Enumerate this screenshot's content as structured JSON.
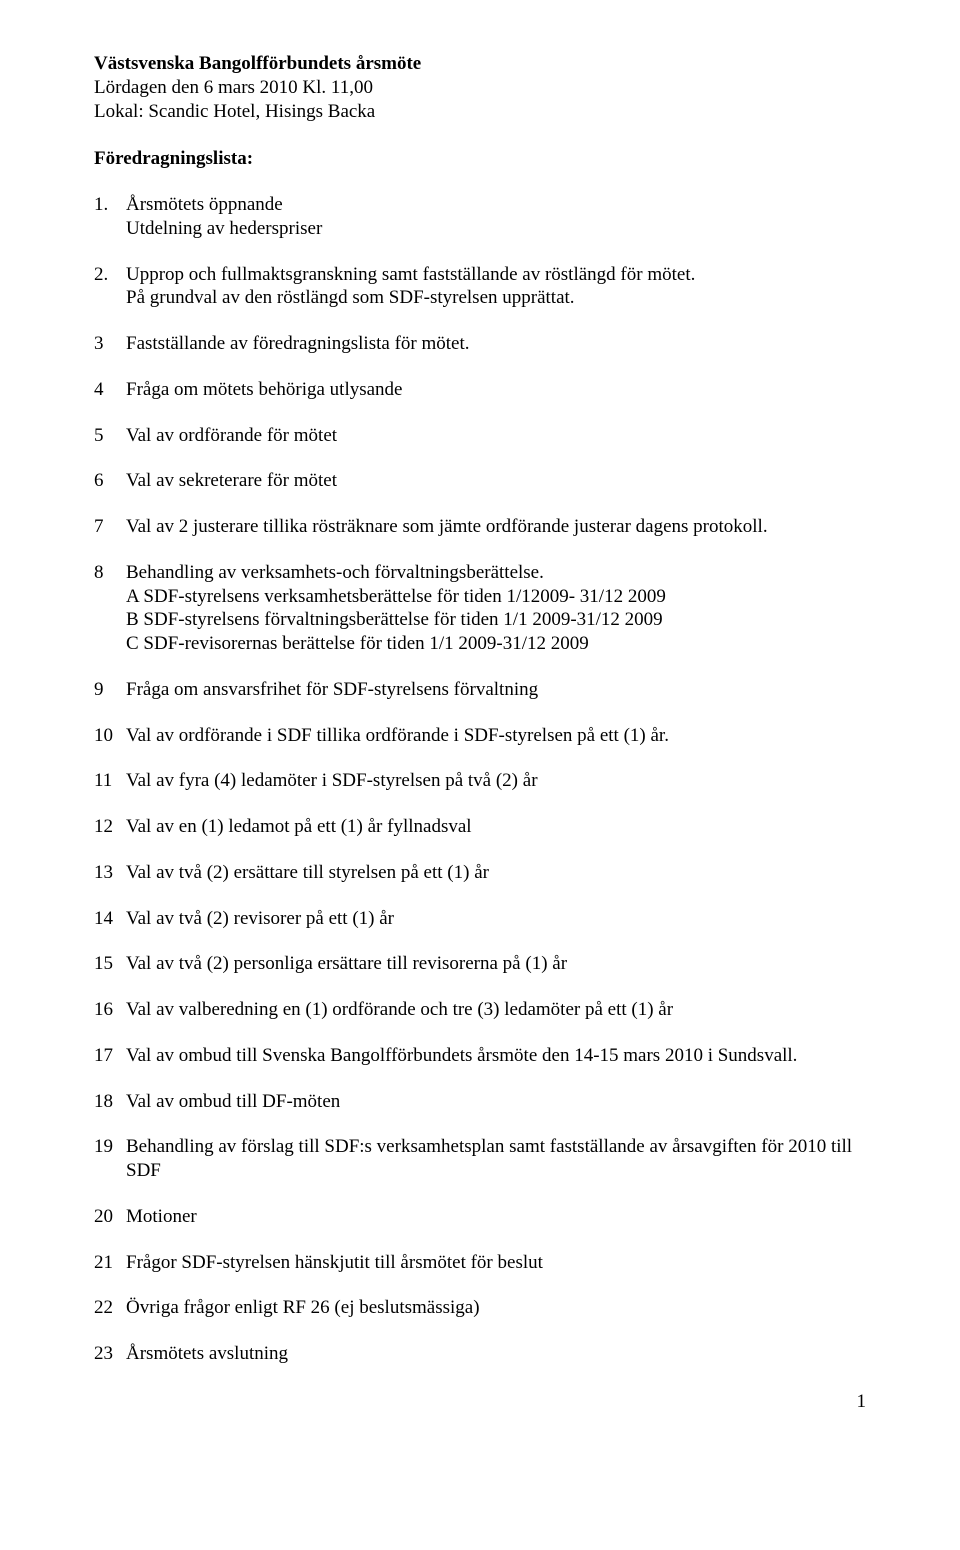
{
  "header": {
    "title": "Västsvenska Bangolfförbundets årsmöte",
    "line2": "Lördagen den 6 mars 2010 Kl. 11,00",
    "line3": "Lokal: Scandic Hotel, Hisings Backa"
  },
  "section_heading": "Föredragningslista:",
  "items": [
    {
      "num": "1.",
      "text": "Årsmötets öppnande",
      "sub": "Utdelning av hederspriser"
    },
    {
      "num": "2.",
      "text": "Upprop och fullmaktsgranskning samt fastställande av röstlängd för mötet.",
      "extra": "På grundval av den röstlängd som SDF-styrelsen upprättat."
    },
    {
      "num": "3",
      "text": "Fastställande av föredragningslista för mötet."
    },
    {
      "num": "4",
      "text": "Fråga om mötets behöriga utlysande"
    },
    {
      "num": "5",
      "text": "Val av ordförande för mötet"
    },
    {
      "num": "6",
      "text": "Val av sekreterare för mötet"
    },
    {
      "num": "7",
      "text": "Val av 2 justerare tillika rösträknare som jämte ordförande justerar dagens protokoll."
    },
    {
      "num": "8",
      "text": "Behandling av verksamhets-och förvaltningsberättelse.",
      "lines": [
        "A SDF-styrelsens verksamhetsberättelse för tiden 1/12009- 31/12 2009",
        "B SDF-styrelsens förvaltningsberättelse för tiden 1/1 2009-31/12 2009",
        "C SDF-revisorernas berättelse för tiden 1/1 2009-31/12 2009"
      ]
    },
    {
      "num": "9",
      "text": "Fråga om ansvarsfrihet för SDF-styrelsens förvaltning"
    },
    {
      "num": "10",
      "text": "Val av ordförande i SDF tillika ordförande i SDF-styrelsen på ett (1) år."
    },
    {
      "num": "11",
      "text": "Val av fyra (4) ledamöter i SDF-styrelsen på två (2) år"
    },
    {
      "num": "12",
      "text": "Val av en (1) ledamot på ett (1) år fyllnadsval"
    },
    {
      "num": "13",
      "text": "Val av två (2) ersättare till styrelsen på ett (1) år"
    },
    {
      "num": "14",
      "text": "Val av två (2) revisorer på ett (1) år"
    },
    {
      "num": "15",
      "text": "Val av två (2) personliga ersättare till revisorerna på (1) år"
    },
    {
      "num": "16",
      "text": "Val av valberedning en (1) ordförande och tre (3) ledamöter på ett (1) år"
    },
    {
      "num": "17",
      "text": "Val av ombud till Svenska Bangolfförbundets årsmöte den 14-15 mars 2010 i Sundsvall."
    },
    {
      "num": "18",
      "text": "Val av ombud till DF-möten"
    },
    {
      "num": "19",
      "text": "Behandling av förslag till SDF:s verksamhetsplan samt fastställande av årsavgiften för 2010 till SDF"
    },
    {
      "num": "20",
      "text": "Motioner"
    },
    {
      "num": "21",
      "text": "Frågor SDF-styrelsen hänskjutit till årsmötet för beslut"
    },
    {
      "num": "22",
      "text": "Övriga frågor enligt RF 26 (ej beslutsmässiga)"
    },
    {
      "num": "23",
      "text": "Årsmötets avslutning"
    }
  ],
  "page_number": "1"
}
